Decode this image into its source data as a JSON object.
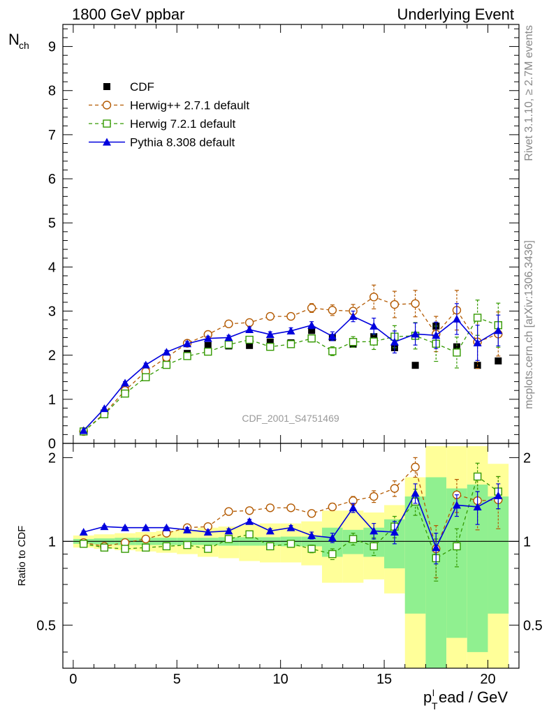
{
  "header": {
    "left_title": "1800 GeV ppbar",
    "right_title": "Underlying Event",
    "side_label_top": "Rivet 3.1.10, ≥ 2.7M events",
    "side_label_bottom": "mcplots.cern.ch [arXiv:1306.3436]",
    "watermark": "CDF_2001_S4751469"
  },
  "chart_data": [
    {
      "panel": "main",
      "type": "scatter",
      "ylabel_main": "N",
      "ylabel_sub": "ch",
      "xlim": [
        -0.5,
        21.5
      ],
      "ylim": [
        0,
        9.5
      ],
      "yticks": [
        0,
        1,
        2,
        3,
        4,
        5,
        6,
        7,
        8,
        9
      ],
      "legend_position": "top-left",
      "x": [
        0.5,
        1.5,
        2.5,
        3.5,
        4.5,
        5.5,
        6.5,
        7.5,
        8.5,
        9.5,
        10.5,
        11.5,
        12.5,
        13.5,
        14.5,
        15.5,
        16.5,
        17.5,
        18.5,
        19.5,
        20.5
      ],
      "series": [
        {
          "name": "CDF",
          "color": "#000000",
          "marker": "filled-square",
          "line": "none",
          "values": [
            0.27,
            0.69,
            1.2,
            1.57,
            1.88,
            2.04,
            2.22,
            2.21,
            2.22,
            2.3,
            2.28,
            2.56,
            2.4,
            2.25,
            2.42,
            2.17,
            1.77,
            2.66,
            2.19,
            1.77,
            1.87
          ],
          "errors": [
            0.02,
            0.04,
            0.05,
            0.05,
            0.06,
            0.06,
            0.06,
            0.06,
            0.06,
            0.06,
            0.06,
            0.06,
            0.06,
            0.06,
            0.06,
            0.06,
            0.06,
            0.06,
            0.06,
            0.06,
            0.06
          ]
        },
        {
          "name": "Herwig++ 2.7.1 default",
          "color": "#b35900",
          "marker": "open-circle",
          "line": "dashed",
          "values": [
            0.27,
            0.68,
            1.2,
            1.63,
            1.95,
            2.27,
            2.47,
            2.71,
            2.74,
            2.88,
            2.88,
            3.07,
            3.02,
            3.0,
            3.32,
            3.15,
            3.17,
            2.48,
            3.02,
            2.3,
            2.48
          ],
          "errors": [
            0.01,
            0.02,
            0.03,
            0.04,
            0.04,
            0.05,
            0.05,
            0.06,
            0.06,
            0.06,
            0.07,
            0.1,
            0.12,
            0.15,
            0.27,
            0.3,
            0.3,
            0.4,
            0.45,
            0.6,
            0.5
          ]
        },
        {
          "name": "Herwig 7.2.1 default",
          "color": "#339900",
          "marker": "open-square",
          "line": "dashed",
          "values": [
            0.27,
            0.66,
            1.13,
            1.5,
            1.78,
            1.98,
            2.08,
            2.24,
            2.35,
            2.19,
            2.25,
            2.38,
            2.09,
            2.3,
            2.31,
            2.42,
            2.44,
            2.26,
            2.06,
            2.85,
            2.68
          ],
          "errors": [
            0.01,
            0.02,
            0.03,
            0.04,
            0.04,
            0.05,
            0.05,
            0.05,
            0.06,
            0.06,
            0.07,
            0.08,
            0.1,
            0.12,
            0.18,
            0.25,
            0.3,
            0.4,
            0.35,
            0.4,
            0.5
          ]
        },
        {
          "name": "Pythia 8.308 default",
          "color": "#0000dd",
          "marker": "filled-triangle",
          "line": "solid",
          "values": [
            0.29,
            0.79,
            1.37,
            1.78,
            2.07,
            2.26,
            2.38,
            2.4,
            2.58,
            2.47,
            2.55,
            2.68,
            2.43,
            2.88,
            2.66,
            2.3,
            2.48,
            2.45,
            2.82,
            2.28,
            2.56
          ],
          "errors": [
            0.01,
            0.02,
            0.03,
            0.04,
            0.04,
            0.05,
            0.05,
            0.05,
            0.06,
            0.06,
            0.07,
            0.08,
            0.1,
            0.12,
            0.18,
            0.25,
            0.25,
            0.3,
            0.35,
            0.4,
            0.35
          ]
        }
      ]
    },
    {
      "panel": "ratio",
      "type": "scatter",
      "ylabel": "Ratio to CDF",
      "xlabel_main": "p",
      "xlabel_sub": "T",
      "xlabel_sup": "l",
      "xlabel_rest": "ead / GeV",
      "xlim": [
        -0.5,
        21.5
      ],
      "ylim": [
        0.35,
        2.25
      ],
      "yticks": [
        0.5,
        1,
        2
      ],
      "xticks": [
        0,
        5,
        10,
        15,
        20
      ],
      "reference_line": 1,
      "x": [
        0.5,
        1.5,
        2.5,
        3.5,
        4.5,
        5.5,
        6.5,
        7.5,
        8.5,
        9.5,
        10.5,
        11.5,
        12.5,
        13.5,
        14.5,
        15.5,
        16.5,
        17.5,
        18.5,
        19.5,
        20.5
      ],
      "bands": {
        "inner_color": "#90f090",
        "outer_color": "#ffff99",
        "inner_halfwidth": [
          0.02,
          0.025,
          0.03,
          0.03,
          0.03,
          0.03,
          0.03,
          0.035,
          0.035,
          0.035,
          0.04,
          0.04,
          0.12,
          0.1,
          0.12,
          0.2,
          0.45,
          0.7,
          0.55,
          0.6,
          0.45
        ],
        "outer_halfwidth": [
          0.05,
          0.06,
          0.07,
          0.08,
          0.09,
          0.1,
          0.12,
          0.13,
          0.15,
          0.16,
          0.16,
          0.18,
          0.29,
          0.29,
          0.27,
          0.35,
          0.7,
          1.2,
          1.2,
          1.2,
          0.9
        ]
      },
      "series": [
        {
          "name": "Herwig++ 2.7.1 default",
          "color": "#b35900",
          "marker": "open-circle",
          "line": "dashed",
          "values": [
            0.99,
            0.96,
            0.99,
            1.02,
            1.07,
            1.12,
            1.13,
            1.28,
            1.29,
            1.32,
            1.32,
            1.26,
            1.33,
            1.4,
            1.45,
            1.55,
            1.85,
            0.94,
            1.47,
            1.4,
            1.41
          ],
          "errors": [
            0.01,
            0.01,
            0.01,
            0.01,
            0.01,
            0.02,
            0.02,
            0.02,
            0.02,
            0.02,
            0.02,
            0.03,
            0.04,
            0.05,
            0.07,
            0.1,
            0.15,
            0.2,
            0.2,
            0.3,
            0.3
          ]
        },
        {
          "name": "Herwig 7.2.1 default",
          "color": "#339900",
          "marker": "open-square",
          "line": "dashed",
          "values": [
            0.98,
            0.95,
            0.94,
            0.95,
            0.96,
            0.97,
            0.94,
            1.02,
            1.06,
            0.96,
            0.98,
            0.94,
            0.9,
            1.02,
            0.96,
            1.13,
            1.39,
            0.87,
            0.96,
            1.71,
            1.51
          ],
          "errors": [
            0.01,
            0.01,
            0.01,
            0.01,
            0.01,
            0.02,
            0.02,
            0.02,
            0.02,
            0.02,
            0.02,
            0.03,
            0.04,
            0.05,
            0.07,
            0.1,
            0.15,
            0.15,
            0.15,
            0.2,
            0.2
          ]
        },
        {
          "name": "Pythia 8.308 default",
          "color": "#0000dd",
          "marker": "filled-triangle",
          "line": "solid",
          "values": [
            1.08,
            1.13,
            1.12,
            1.12,
            1.12,
            1.1,
            1.08,
            1.09,
            1.18,
            1.09,
            1.12,
            1.05,
            1.03,
            1.32,
            1.09,
            1.08,
            1.49,
            0.95,
            1.35,
            1.33,
            1.46
          ],
          "errors": [
            0.01,
            0.01,
            0.01,
            0.01,
            0.01,
            0.02,
            0.02,
            0.02,
            0.02,
            0.02,
            0.02,
            0.03,
            0.04,
            0.05,
            0.07,
            0.1,
            0.12,
            0.12,
            0.12,
            0.18,
            0.15
          ]
        }
      ]
    }
  ]
}
